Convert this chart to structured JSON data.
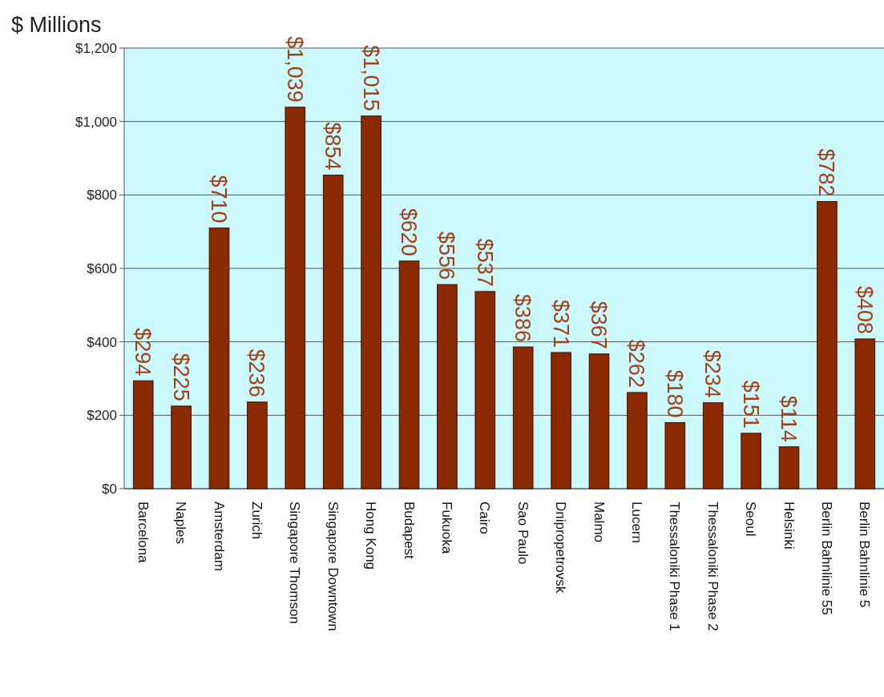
{
  "chart_data": {
    "type": "bar",
    "ylabel": "$ Millions",
    "categories": [
      "Barcelona",
      "Naples",
      "Amsterdam",
      "Zurich",
      "Singapore Thomson",
      "Singapore Downtown",
      "Hong Kong",
      "Budapest",
      "Fukuoka",
      "Cairo",
      "Sao Paulo",
      "Dnipropetrovsk",
      "Malmo",
      "Lucern",
      "Thessaloniki Phase 1",
      "Thessaloniki Phase 2",
      "Seoul",
      "Helsinki",
      "Berlin Bahnlinie 55",
      "Berlin Bahnlinie 5"
    ],
    "values": [
      294,
      225,
      710,
      236,
      1039,
      854,
      1015,
      620,
      556,
      537,
      386,
      371,
      367,
      262,
      180,
      234,
      151,
      114,
      782,
      408
    ],
    "value_labels": [
      "$294",
      "$225",
      "$710",
      "$236",
      "$1,039",
      "$854",
      "$1,015",
      "$620",
      "$556",
      "$537",
      "$386",
      "$371",
      "$367",
      "$262",
      "$180",
      "$234",
      "$151",
      "$114",
      "$782",
      "$408"
    ],
    "color": "#8b2a00",
    "ylim": [
      0,
      1200
    ],
    "yticks": [
      {
        "value": 0,
        "label": "$0"
      },
      {
        "value": 200,
        "label": "$200"
      },
      {
        "value": 400,
        "label": "$400"
      },
      {
        "value": 600,
        "label": "$600"
      },
      {
        "value": 800,
        "label": "$800"
      },
      {
        "value": 1000,
        "label": "$1,000"
      },
      {
        "value": 1200,
        "label": "$1,200"
      }
    ],
    "grid": "y"
  }
}
